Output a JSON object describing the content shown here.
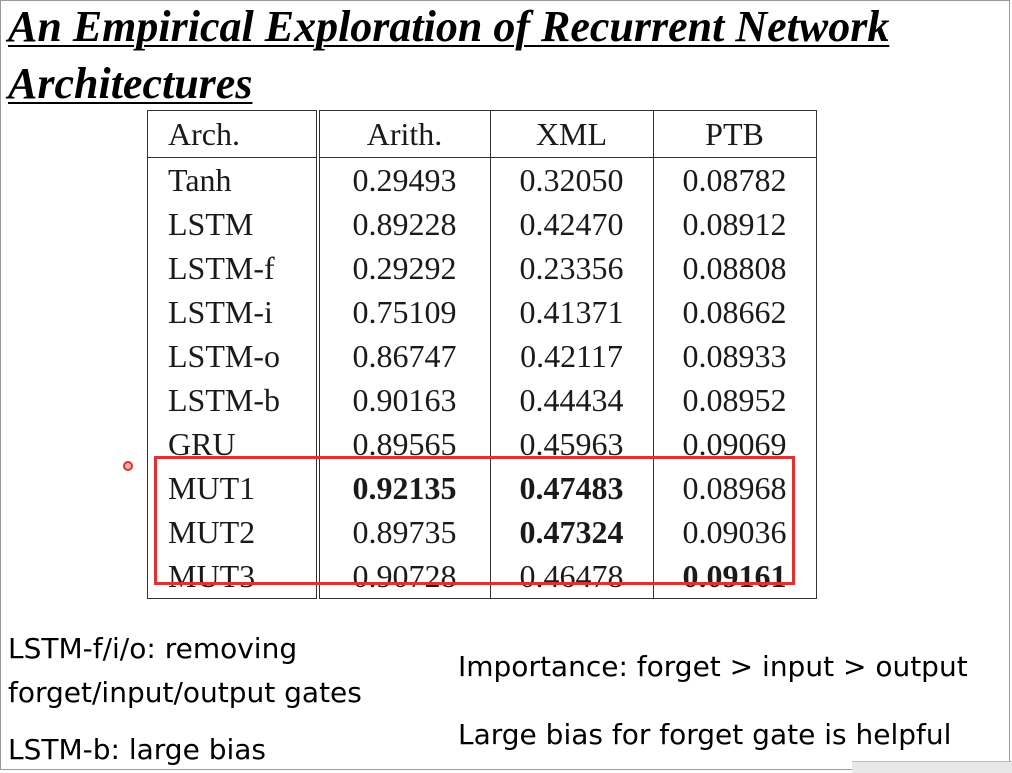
{
  "slide": {
    "title": "An Empirical Exploration of Recurrent Network Architectures"
  },
  "table": {
    "headers": [
      "Arch.",
      "Arith.",
      "XML",
      "PTB"
    ],
    "rows": [
      {
        "arch": "Tanh",
        "arith": "0.29493",
        "xml": "0.32050",
        "ptb": "0.08782",
        "bold": []
      },
      {
        "arch": "LSTM",
        "arith": "0.89228",
        "xml": "0.42470",
        "ptb": "0.08912",
        "bold": []
      },
      {
        "arch": "LSTM-f",
        "arith": "0.29292",
        "xml": "0.23356",
        "ptb": "0.08808",
        "bold": []
      },
      {
        "arch": "LSTM-i",
        "arith": "0.75109",
        "xml": "0.41371",
        "ptb": "0.08662",
        "bold": []
      },
      {
        "arch": "LSTM-o",
        "arith": "0.86747",
        "xml": "0.42117",
        "ptb": "0.08933",
        "bold": []
      },
      {
        "arch": "LSTM-b",
        "arith": "0.90163",
        "xml": "0.44434",
        "ptb": "0.08952",
        "bold": []
      },
      {
        "arch": "GRU",
        "arith": "0.89565",
        "xml": "0.45963",
        "ptb": "0.09069",
        "bold": []
      },
      {
        "arch": "MUT1",
        "arith": "0.92135",
        "xml": "0.47483",
        "ptb": "0.08968",
        "bold": [
          "arith",
          "xml"
        ]
      },
      {
        "arch": "MUT2",
        "arith": "0.89735",
        "xml": "0.47324",
        "ptb": "0.09036",
        "bold": [
          "xml"
        ]
      },
      {
        "arch": "MUT3",
        "arith": "0.90728",
        "xml": "0.46478",
        "ptb": "0.09161",
        "bold": [
          "ptb"
        ]
      }
    ],
    "highlight_color": "#e03030"
  },
  "notes": {
    "left_line1": "LSTM-f/i/o: removing",
    "left_line2": "forget/input/output gates",
    "left_line3": "LSTM-b: large bias",
    "right_line1": "Importance: forget > input > output",
    "right_line2": "Large bias for forget gate is helpful"
  }
}
